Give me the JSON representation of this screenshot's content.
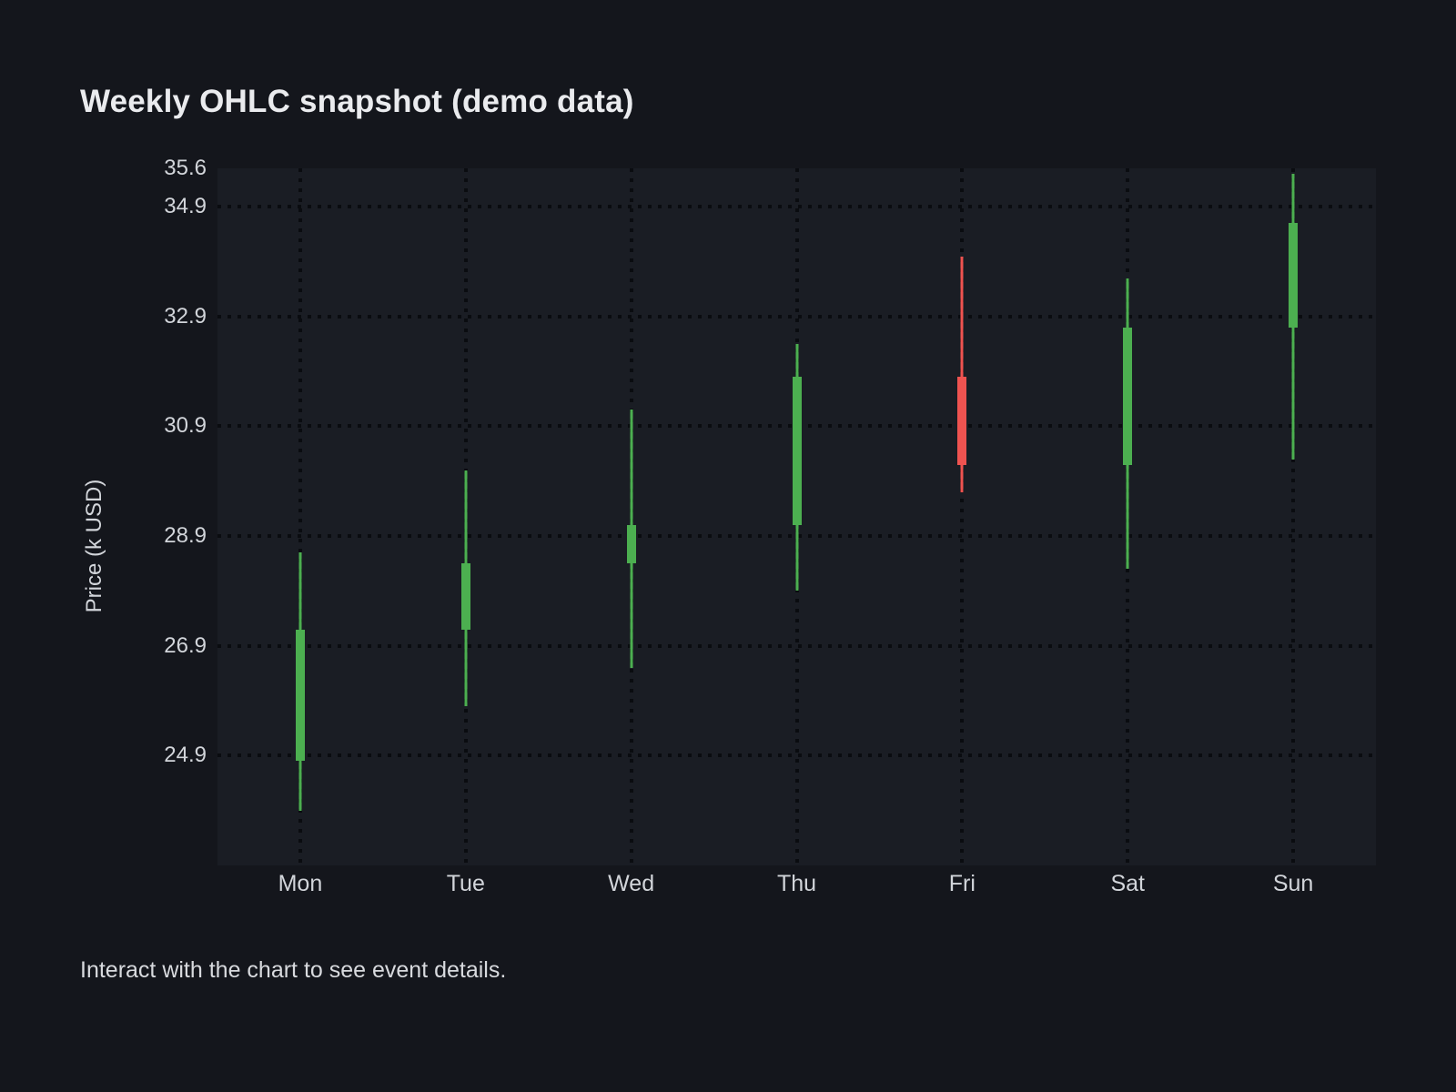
{
  "page": {
    "footer": "Interact with the chart to see event details."
  },
  "theme": {
    "page_bg": "#14161c",
    "plot_bg": "#1a1d24",
    "grid_color": "#0a0c10",
    "title_color": "#eaebee",
    "tick_color": "#d2d5da",
    "text_color": "#d8dade",
    "up_color": "#4caf50",
    "down_color": "#ef5350"
  },
  "chart_data": {
    "type": "candlestick",
    "title": "Weekly OHLC snapshot (demo data)",
    "xlabel": "",
    "ylabel": "Price (k USD)",
    "categories": [
      "Mon",
      "Tue",
      "Wed",
      "Thu",
      "Fri",
      "Sat",
      "Sun"
    ],
    "series": [
      {
        "name": "OHLC",
        "points": [
          {
            "category": "Mon",
            "open": 24.8,
            "high": 28.6,
            "low": 23.9,
            "close": 27.2,
            "direction": "up"
          },
          {
            "category": "Tue",
            "open": 27.2,
            "high": 30.1,
            "low": 25.8,
            "close": 28.4,
            "direction": "up"
          },
          {
            "category": "Wed",
            "open": 28.4,
            "high": 31.2,
            "low": 26.5,
            "close": 29.1,
            "direction": "up"
          },
          {
            "category": "Thu",
            "open": 29.1,
            "high": 32.4,
            "low": 27.9,
            "close": 31.8,
            "direction": "up"
          },
          {
            "category": "Fri",
            "open": 31.8,
            "high": 34.0,
            "low": 29.7,
            "close": 30.2,
            "direction": "down"
          },
          {
            "category": "Sat",
            "open": 30.2,
            "high": 33.6,
            "low": 28.3,
            "close": 32.7,
            "direction": "up"
          },
          {
            "category": "Sun",
            "open": 32.7,
            "high": 35.5,
            "low": 30.3,
            "close": 34.6,
            "direction": "up"
          }
        ]
      }
    ],
    "ylim": [
      22.9,
      35.6
    ],
    "yticks": [
      {
        "value": 35.6,
        "label": "35.6",
        "gridline": false
      },
      {
        "value": 34.9,
        "label": "34.9",
        "gridline": true
      },
      {
        "value": 32.9,
        "label": "32.9",
        "gridline": true
      },
      {
        "value": 30.9,
        "label": "30.9",
        "gridline": true
      },
      {
        "value": 28.9,
        "label": "28.9",
        "gridline": true
      },
      {
        "value": 26.9,
        "label": "26.9",
        "gridline": true
      },
      {
        "value": 24.9,
        "label": "24.9",
        "gridline": true
      }
    ],
    "grid": "dotted",
    "legend": "none"
  }
}
